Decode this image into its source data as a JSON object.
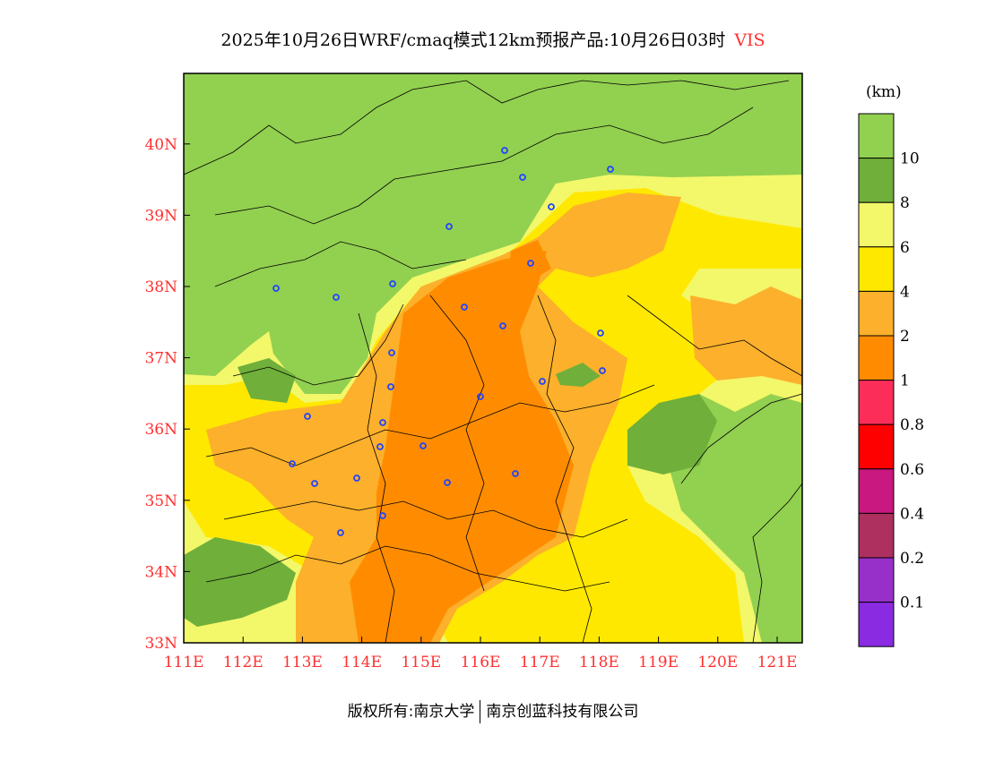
{
  "title": "2025年10月26日WRF/cmaq模式12km预报产品:10月26日03时",
  "variable": "VIS",
  "map": {
    "lat_labels": [
      "40N",
      "39N",
      "38N",
      "37N",
      "36N",
      "35N",
      "34N",
      "33N"
    ],
    "lat_values": [
      40,
      39,
      38,
      37,
      36,
      35,
      34,
      33
    ],
    "lon_labels": [
      "111E",
      "112E",
      "113E",
      "114E",
      "115E",
      "116E",
      "117E",
      "118E",
      "119E",
      "120E",
      "121E"
    ],
    "lon_values": [
      111,
      112,
      113,
      114,
      115,
      116,
      117,
      118,
      119,
      120,
      121
    ],
    "label_color": "#ff3030"
  },
  "colorbar": {
    "unit": "(km)",
    "labels": [
      "10",
      "8",
      "6",
      "4",
      "2",
      "1",
      "0.8",
      "0.6",
      "0.4",
      "0.2",
      "0.1"
    ],
    "colors": [
      "#92d050",
      "#6faf3a",
      "#f3f76a",
      "#ffe800",
      "#fcb02b",
      "#ff8c00",
      "#fd2d5a",
      "#ff0000",
      "#c9187f",
      "#ad305f",
      "#9730c8",
      "#8a2be2"
    ]
  },
  "footer": {
    "left": "版权所有:南京大学",
    "right": "南京创蓝科技有限公司"
  }
}
